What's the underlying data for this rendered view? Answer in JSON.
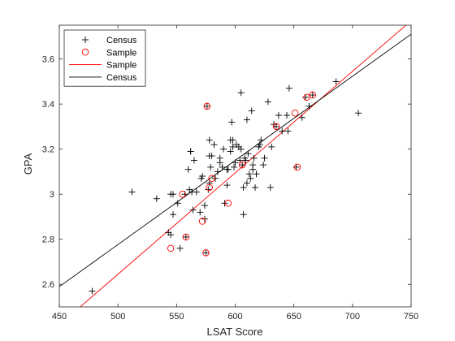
{
  "chart_data": {
    "type": "scatter",
    "title": "",
    "xlabel": "LSAT Score",
    "ylabel": "GPA",
    "xlim": [
      450,
      750
    ],
    "ylim": [
      2.5,
      3.75
    ],
    "xticks": [
      450,
      500,
      550,
      600,
      650,
      700,
      750
    ],
    "xtick_labels": [
      "450",
      "500",
      "550",
      "600",
      "650",
      "700",
      "750"
    ],
    "yticks": [
      2.6,
      2.8,
      3.0,
      3.2,
      3.4,
      3.6
    ],
    "ytick_labels": [
      "2.6",
      "2.8",
      "3",
      "3.2",
      "3.4",
      "3.6"
    ],
    "grid": false,
    "legend_position": "top-left",
    "series": [
      {
        "name": "Census",
        "kind": "scatter",
        "marker": "plus",
        "color": "#000000",
        "x": [
          478,
          512,
          533,
          543,
          545,
          547,
          547,
          551,
          553,
          557,
          558,
          560,
          561,
          562,
          563,
          564,
          565,
          567,
          570,
          571,
          572,
          574,
          574,
          575,
          576,
          577,
          578,
          578,
          579,
          580,
          582,
          583,
          585,
          587,
          589,
          590,
          591,
          593,
          594,
          596,
          596,
          597,
          598,
          598,
          599,
          600,
          601,
          603,
          604,
          605,
          605,
          606,
          607,
          607,
          608,
          609,
          610,
          611,
          612,
          613,
          614,
          615,
          615,
          617,
          618,
          620,
          621,
          622,
          624,
          625,
          628,
          630,
          631,
          633,
          635,
          637,
          640,
          644,
          645,
          646,
          652,
          657,
          660,
          663,
          666,
          686,
          705,
          578,
          562,
          593,
          587,
          610,
          616,
          545
        ],
        "y": [
          2.57,
          3.01,
          2.98,
          2.83,
          2.82,
          3.0,
          2.91,
          2.96,
          2.76,
          3.0,
          2.81,
          3.11,
          3.02,
          3.19,
          3.01,
          2.93,
          3.15,
          3.01,
          2.92,
          3.07,
          3.08,
          2.89,
          2.95,
          2.74,
          3.39,
          3.02,
          3.05,
          3.24,
          3.12,
          3.17,
          3.22,
          3.07,
          3.1,
          3.14,
          3.12,
          3.2,
          2.96,
          3.04,
          3.11,
          3.19,
          3.24,
          3.32,
          3.21,
          3.24,
          3.12,
          3.14,
          3.22,
          3.21,
          3.15,
          3.2,
          3.45,
          3.13,
          3.03,
          2.91,
          3.16,
          3.15,
          3.33,
          3.18,
          3.09,
          3.07,
          3.37,
          3.13,
          3.11,
          3.03,
          3.09,
          3.21,
          3.22,
          3.24,
          3.13,
          3.16,
          3.41,
          3.03,
          3.21,
          3.31,
          3.3,
          3.35,
          3.28,
          3.35,
          3.28,
          3.47,
          3.12,
          3.34,
          3.43,
          3.39,
          3.44,
          3.5,
          3.36,
          3.17,
          3.19,
          3.11,
          3.16,
          3.05,
          3.16,
          3.0
        ]
      },
      {
        "name": "Sample",
        "kind": "scatter",
        "marker": "circle",
        "color": "#ff0000",
        "x": [
          545,
          555,
          558,
          572,
          575,
          576,
          578,
          580,
          594,
          606,
          635,
          651,
          653,
          661,
          666
        ],
        "y": [
          2.76,
          3.0,
          2.81,
          2.88,
          2.74,
          3.39,
          3.03,
          3.07,
          2.96,
          3.13,
          3.3,
          3.36,
          3.12,
          3.43,
          3.44
        ]
      },
      {
        "name": "Sample",
        "kind": "line",
        "color": "#ff0000",
        "x": [
          450,
          750
        ],
        "y": [
          2.42,
          3.77
        ]
      },
      {
        "name": "Census",
        "kind": "line",
        "color": "#000000",
        "x": [
          450,
          750
        ],
        "y": [
          2.59,
          3.71
        ]
      }
    ]
  }
}
